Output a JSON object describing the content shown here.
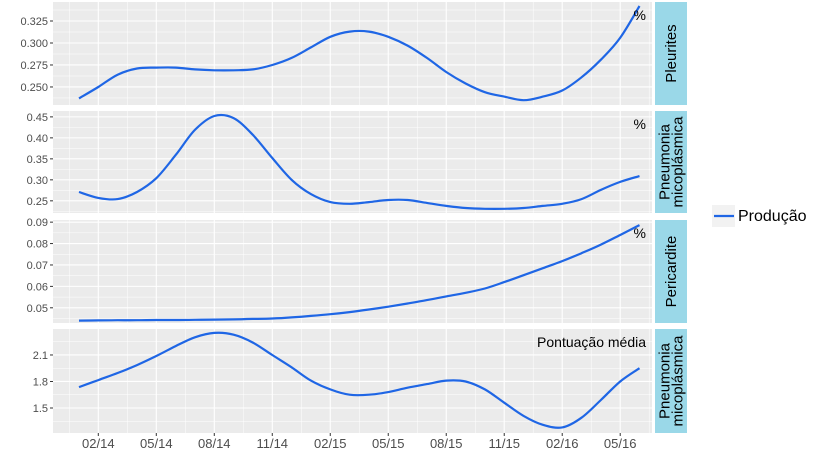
{
  "chart_data": {
    "type": "line",
    "layout": "faceted-rows",
    "grid": true,
    "legend": {
      "placement": "right",
      "entries": [
        {
          "name": "Produção",
          "color": "#1f66e5"
        }
      ]
    },
    "colors": {
      "line": "#1f66e5",
      "panel_bg": "#ebebeb",
      "strip_bg": "#9ad8e8",
      "grid": "#ffffff"
    },
    "x": [
      "2014-01",
      "2014-02",
      "2014-03",
      "2014-04",
      "2014-05",
      "2014-06",
      "2014-07",
      "2014-08",
      "2014-09",
      "2014-10",
      "2014-11",
      "2014-12",
      "2015-01",
      "2015-02",
      "2015-03",
      "2015-04",
      "2015-05",
      "2015-06",
      "2015-07",
      "2015-08",
      "2015-09",
      "2015-10",
      "2015-11",
      "2015-12",
      "2016-01",
      "2016-02",
      "2016-03",
      "2016-04",
      "2016-05",
      "2016-06"
    ],
    "x_ticks": [
      "02/14",
      "05/14",
      "08/14",
      "11/14",
      "02/15",
      "05/15",
      "08/15",
      "11/15",
      "02/16",
      "05/16"
    ],
    "panels": [
      {
        "strip": [
          "Pleurites"
        ],
        "annotation": "%",
        "ylim": [
          0.2295,
          0.3466
        ],
        "y_ticks": [
          0.25,
          0.275,
          0.3,
          0.325
        ],
        "y_tick_labels": [
          "0.250",
          "0.275",
          "0.300",
          "0.325"
        ],
        "series": [
          {
            "name": "Produção",
            "values": [
              0.237,
              0.25,
              0.264,
              0.271,
              0.272,
              0.272,
              0.27,
              0.269,
              0.269,
              0.27,
              0.275,
              0.283,
              0.295,
              0.307,
              0.313,
              0.313,
              0.307,
              0.297,
              0.283,
              0.267,
              0.254,
              0.244,
              0.239,
              0.235,
              0.239,
              0.246,
              0.261,
              0.281,
              0.306,
              0.342
            ]
          }
        ]
      },
      {
        "strip": [
          "Pneumonia",
          "micoplásmica"
        ],
        "annotation": "%",
        "ylim": [
          0.221,
          0.464
        ],
        "y_ticks": [
          0.25,
          0.3,
          0.35,
          0.4,
          0.45
        ],
        "y_tick_labels": [
          "0.25",
          "0.30",
          "0.35",
          "0.40",
          "0.45"
        ],
        "series": [
          {
            "name": "Produção",
            "values": [
              0.271,
              0.257,
              0.254,
              0.271,
              0.304,
              0.359,
              0.419,
              0.452,
              0.447,
              0.407,
              0.352,
              0.3,
              0.266,
              0.247,
              0.243,
              0.247,
              0.252,
              0.252,
              0.245,
              0.238,
              0.233,
              0.231,
              0.231,
              0.233,
              0.238,
              0.243,
              0.254,
              0.276,
              0.295,
              0.309
            ]
          }
        ]
      },
      {
        "strip": [
          "Pericardite"
        ],
        "annotation": "%",
        "ylim": [
          0.0429,
          0.091
        ],
        "y_ticks": [
          0.05,
          0.06,
          0.07,
          0.08,
          0.09
        ],
        "y_tick_labels": [
          "0.05",
          "0.06",
          "0.07",
          "0.08",
          "0.09"
        ],
        "series": [
          {
            "name": "Produção",
            "values": [
              0.044,
              0.0441,
              0.0442,
              0.0442,
              0.0443,
              0.0443,
              0.0444,
              0.0445,
              0.0446,
              0.0448,
              0.045,
              0.0455,
              0.0462,
              0.047,
              0.048,
              0.0492,
              0.0505,
              0.052,
              0.0536,
              0.0553,
              0.057,
              0.059,
              0.062,
              0.0652,
              0.0685,
              0.0718,
              0.0755,
              0.0795,
              0.084,
              0.0886
            ]
          }
        ]
      },
      {
        "strip": [
          "Pneumonia",
          "micoplásmica"
        ],
        "annotation": "Pontuação média",
        "ylim": [
          1.217,
          2.394
        ],
        "y_ticks": [
          1.5,
          1.8,
          2.1
        ],
        "y_tick_labels": [
          "1.5",
          "1.8",
          "2.1"
        ],
        "series": [
          {
            "name": "Produção",
            "values": [
              1.737,
              1.816,
              1.896,
              1.986,
              2.088,
              2.2,
              2.3,
              2.35,
              2.33,
              2.24,
              2.1,
              1.96,
              1.81,
              1.71,
              1.65,
              1.65,
              1.68,
              1.73,
              1.77,
              1.81,
              1.8,
              1.71,
              1.56,
              1.41,
              1.31,
              1.28,
              1.39,
              1.59,
              1.8,
              1.95
            ]
          }
        ]
      }
    ]
  }
}
